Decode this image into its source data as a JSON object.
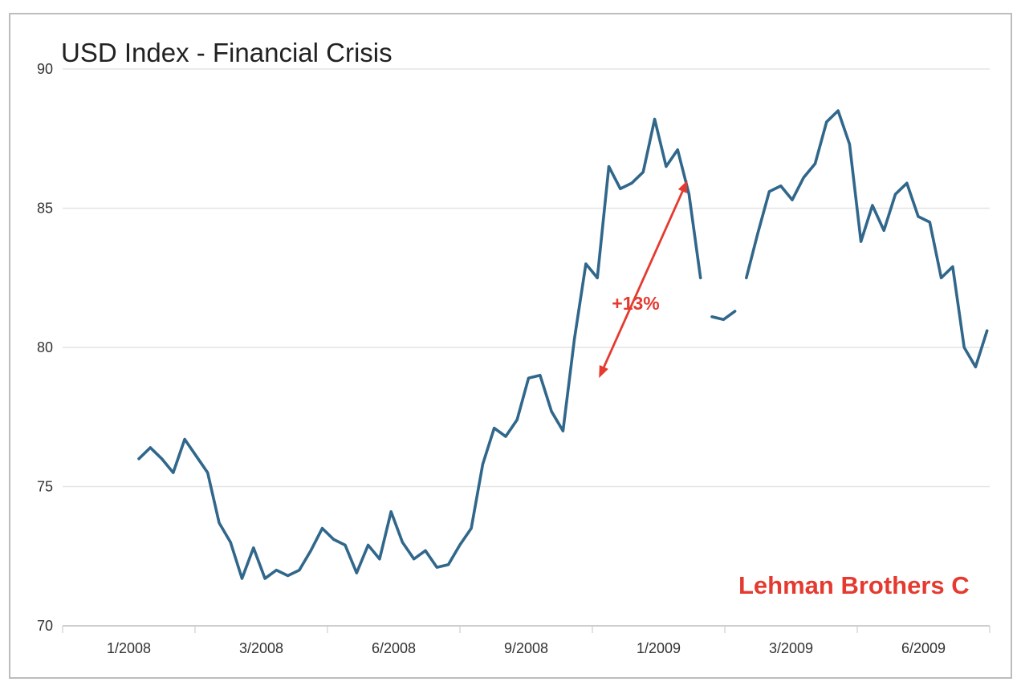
{
  "chart_data": {
    "type": "line",
    "title": "USD Index - Financial Crisis",
    "xlabel": "",
    "ylabel": "",
    "ylim": [
      70,
      90
    ],
    "yticks": [
      "70",
      "75",
      "80",
      "85",
      "90"
    ],
    "xticks": [
      "1/2008",
      "3/2008",
      "6/2008",
      "9/2008",
      "1/2009",
      "3/2009",
      "6/2009"
    ],
    "grid": true,
    "line_color": "#30678b",
    "series": [
      {
        "segments": [
          [
            [
              "2008-01-01",
              76.0
            ],
            [
              "2008-01-08",
              76.4
            ],
            [
              "2008-01-15",
              76.0
            ],
            [
              "2008-01-22",
              75.5
            ],
            [
              "2008-01-29",
              76.7
            ],
            [
              "2008-02-05",
              76.1
            ],
            [
              "2008-02-12",
              75.5
            ],
            [
              "2008-02-19",
              73.7
            ],
            [
              "2008-02-26",
              73.0
            ],
            [
              "2008-03-04",
              71.7
            ],
            [
              "2008-03-11",
              72.8
            ],
            [
              "2008-03-18",
              71.7
            ],
            [
              "2008-03-25",
              72.0
            ],
            [
              "2008-04-01",
              71.8
            ],
            [
              "2008-04-08",
              72.0
            ],
            [
              "2008-04-15",
              72.7
            ],
            [
              "2008-04-22",
              73.5
            ],
            [
              "2008-04-29",
              73.1
            ],
            [
              "2008-05-06",
              72.9
            ],
            [
              "2008-05-13",
              71.9
            ],
            [
              "2008-05-20",
              72.9
            ],
            [
              "2008-05-27",
              72.4
            ],
            [
              "2008-06-03",
              74.1
            ],
            [
              "2008-06-10",
              73.0
            ],
            [
              "2008-06-17",
              72.4
            ],
            [
              "2008-06-24",
              72.7
            ],
            [
              "2008-07-01",
              72.1
            ],
            [
              "2008-07-08",
              72.2
            ],
            [
              "2008-07-15",
              72.9
            ],
            [
              "2008-07-22",
              73.5
            ],
            [
              "2008-07-29",
              75.8
            ],
            [
              "2008-08-05",
              77.1
            ],
            [
              "2008-08-12",
              76.8
            ],
            [
              "2008-08-19",
              77.4
            ],
            [
              "2008-08-26",
              78.9
            ],
            [
              "2008-09-02",
              79.0
            ],
            [
              "2008-09-09",
              77.7
            ],
            [
              "2008-09-16",
              77.0
            ],
            [
              "2008-09-23",
              80.3
            ],
            [
              "2008-09-30",
              83.0
            ],
            [
              "2008-10-07",
              82.5
            ],
            [
              "2008-10-14",
              86.5
            ],
            [
              "2008-10-21",
              85.7
            ],
            [
              "2008-10-28",
              85.9
            ],
            [
              "2008-11-04",
              86.3
            ],
            [
              "2008-11-11",
              88.2
            ],
            [
              "2008-11-18",
              86.5
            ],
            [
              "2008-11-25",
              87.1
            ],
            [
              "2008-12-02",
              85.5
            ],
            [
              "2008-12-09",
              82.5
            ]
          ],
          [
            [
              "2008-12-16",
              81.1
            ],
            [
              "2008-12-23",
              81.0
            ],
            [
              "2008-12-30",
              81.3
            ]
          ],
          [
            [
              "2009-01-06",
              82.5
            ],
            [
              "2009-01-13",
              84.1
            ],
            [
              "2009-01-20",
              85.6
            ],
            [
              "2009-01-27",
              85.8
            ],
            [
              "2009-02-03",
              85.3
            ],
            [
              "2009-02-10",
              86.1
            ],
            [
              "2009-02-17",
              86.6
            ],
            [
              "2009-02-24",
              88.1
            ],
            [
              "2009-03-03",
              88.5
            ],
            [
              "2009-03-10",
              87.3
            ],
            [
              "2009-03-17",
              83.8
            ],
            [
              "2009-03-24",
              85.1
            ],
            [
              "2009-03-31",
              84.2
            ],
            [
              "2009-04-07",
              85.5
            ],
            [
              "2009-04-14",
              85.9
            ],
            [
              "2009-04-21",
              84.7
            ],
            [
              "2009-04-28",
              84.5
            ],
            [
              "2009-05-05",
              82.5
            ],
            [
              "2009-05-12",
              82.9
            ],
            [
              "2009-05-19",
              80.0
            ],
            [
              "2009-05-26",
              79.3
            ],
            [
              "2009-06-02",
              80.6
            ]
          ]
        ]
      }
    ],
    "annotations": {
      "change_label": "+13%",
      "arrow_from": [
        "2008-10-08",
        78.9
      ],
      "arrow_to": [
        "2008-12-01",
        86.0
      ],
      "event_label": "Lehman Brothers C",
      "color": "#e53a2f"
    }
  }
}
